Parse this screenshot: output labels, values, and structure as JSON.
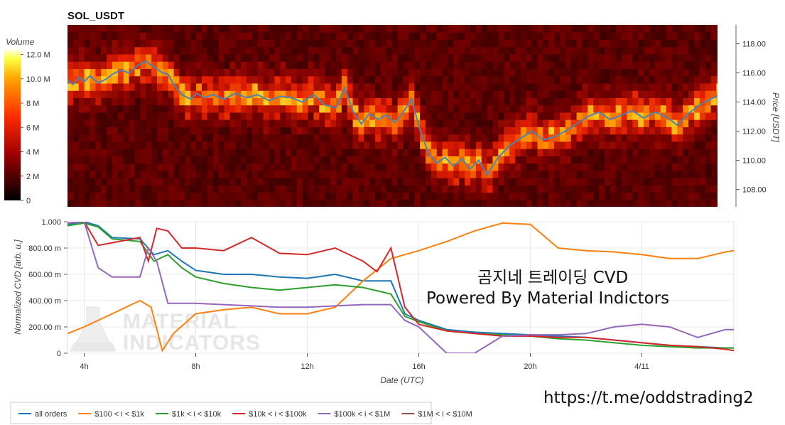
{
  "chart_data": [
    {
      "type": "heatmap",
      "title": "SOL_USDT",
      "colorbar_label": "Volume",
      "colorbar_ticks": [
        {
          "value": 0,
          "label": "0"
        },
        {
          "value": 2,
          "label": "2 M"
        },
        {
          "value": 4,
          "label": "4 M"
        },
        {
          "value": 6,
          "label": "6 M"
        },
        {
          "value": 8,
          "label": "8 M"
        },
        {
          "value": 10,
          "label": "10.0 M"
        },
        {
          "value": 12,
          "label": "12.0 M"
        }
      ],
      "colorbar_range": [
        0,
        12.5
      ],
      "ylabel": "Price [USDT]",
      "ylim": [
        106.8,
        119.3
      ],
      "y_ticks": [
        "108.00",
        "110.00",
        "112.00",
        "114.00",
        "116.00",
        "118.00"
      ],
      "xlim": [
        3.4,
        27.3
      ],
      "price_line": {
        "color": "#4a84b6",
        "x": [
          3.4,
          3.6,
          3.8,
          4.0,
          4.2,
          4.5,
          4.8,
          5.0,
          5.3,
          5.6,
          5.9,
          6.2,
          6.5,
          6.8,
          7.0,
          7.2,
          7.5,
          7.8,
          8.0,
          8.3,
          8.6,
          9.0,
          9.4,
          9.8,
          10.2,
          10.6,
          11.0,
          11.4,
          11.8,
          12.2,
          12.6,
          13.0,
          13.3,
          13.6,
          13.9,
          14.2,
          14.5,
          14.8,
          15.1,
          15.4,
          15.7,
          16.0,
          16.3,
          16.6,
          16.9,
          17.2,
          17.5,
          17.8,
          18.1,
          18.4,
          18.8,
          19.2,
          19.6,
          20.0,
          20.4,
          20.8,
          21.2,
          21.6,
          22.0,
          22.4,
          22.8,
          23.2,
          23.6,
          24.0,
          24.4,
          24.8,
          25.2,
          25.6,
          26.0,
          26.4,
          26.8,
          27.0,
          27.3
        ],
        "y": [
          115.5,
          115.2,
          115.7,
          115.4,
          115.8,
          115.3,
          115.6,
          115.9,
          116.2,
          116.0,
          116.5,
          116.8,
          116.4,
          116.0,
          115.9,
          115.2,
          114.5,
          114.2,
          114.6,
          114.3,
          114.5,
          114.2,
          114.6,
          114.3,
          114.5,
          114.1,
          114.4,
          114.3,
          114.0,
          114.5,
          113.8,
          113.6,
          115.0,
          113.4,
          112.5,
          113.2,
          112.8,
          113.1,
          112.6,
          113.3,
          114.2,
          112.1,
          110.5,
          109.8,
          110.2,
          109.6,
          110.1,
          109.4,
          110.0,
          109.0,
          110.2,
          111.0,
          111.5,
          112.0,
          111.4,
          111.6,
          112.0,
          112.5,
          113.0,
          113.3,
          112.8,
          113.1,
          113.4,
          112.9,
          113.3,
          113.0,
          112.4,
          113.2,
          113.8,
          114.2,
          114.6,
          114.4,
          115.5
        ]
      }
    },
    {
      "type": "line",
      "ylabel": "Normalized CVD [arb. u.]",
      "xlabel": "Date (UTC)",
      "ylim": [
        0,
        1
      ],
      "y_ticks": [
        "0",
        "200.00 m",
        "400.00 m",
        "600.00 m",
        "800.00 m",
        "1.000"
      ],
      "xlim": [
        3.4,
        27.3
      ],
      "x_ticks": [
        {
          "value": 4,
          "label": "4h"
        },
        {
          "value": 8,
          "label": "8h"
        },
        {
          "value": 12,
          "label": "12h"
        },
        {
          "value": 16,
          "label": "16h"
        },
        {
          "value": 20,
          "label": "20h"
        },
        {
          "value": 24,
          "label": "4/11"
        }
      ],
      "series": [
        {
          "name": "all orders",
          "color": "#1f77b4",
          "x": [
            3.4,
            4.0,
            4.5,
            5.0,
            6.0,
            6.5,
            7.0,
            7.5,
            8.0,
            9.0,
            10.0,
            11.0,
            12.0,
            13.0,
            14.0,
            15.0,
            15.5,
            16.0,
            17.0,
            18.0,
            19.0,
            20.0,
            21.0,
            22.0,
            23.0,
            24.0,
            25.0,
            26.0,
            27.0,
            27.3
          ],
          "y": [
            0.98,
            1.0,
            0.97,
            0.88,
            0.87,
            0.75,
            0.78,
            0.7,
            0.63,
            0.6,
            0.6,
            0.58,
            0.57,
            0.6,
            0.55,
            0.55,
            0.3,
            0.25,
            0.18,
            0.16,
            0.15,
            0.14,
            0.13,
            0.12,
            0.1,
            0.08,
            0.06,
            0.05,
            0.04,
            0.04
          ]
        },
        {
          "name": "$100 < i < $1k",
          "color": "#ff7f0e",
          "x": [
            3.4,
            4.0,
            5.0,
            6.0,
            6.4,
            6.8,
            7.2,
            8.0,
            9.0,
            10.0,
            11.0,
            12.0,
            13.0,
            14.0,
            15.0,
            16.0,
            17.0,
            18.0,
            19.0,
            20.0,
            21.0,
            22.0,
            23.0,
            24.0,
            25.0,
            26.0,
            27.0,
            27.3
          ],
          "y": [
            0.15,
            0.2,
            0.3,
            0.4,
            0.35,
            0.02,
            0.15,
            0.3,
            0.33,
            0.35,
            0.3,
            0.3,
            0.35,
            0.55,
            0.72,
            0.78,
            0.85,
            0.93,
            0.99,
            0.98,
            0.8,
            0.78,
            0.77,
            0.75,
            0.72,
            0.72,
            0.77,
            0.78
          ]
        },
        {
          "name": "$1k < i < $10k",
          "color": "#2ca02c",
          "x": [
            3.4,
            4.0,
            4.5,
            5.0,
            6.0,
            6.5,
            7.0,
            7.5,
            8.0,
            9.0,
            10.0,
            11.0,
            12.0,
            13.0,
            14.0,
            15.0,
            15.5,
            16.0,
            17.0,
            18.0,
            19.0,
            20.0,
            21.0,
            22.0,
            23.0,
            24.0,
            25.0,
            26.0,
            27.0,
            27.3
          ],
          "y": [
            0.97,
            0.99,
            0.96,
            0.87,
            0.85,
            0.7,
            0.75,
            0.65,
            0.58,
            0.53,
            0.5,
            0.48,
            0.5,
            0.52,
            0.5,
            0.45,
            0.28,
            0.24,
            0.17,
            0.15,
            0.14,
            0.13,
            0.11,
            0.1,
            0.08,
            0.06,
            0.05,
            0.04,
            0.04,
            0.04
          ]
        },
        {
          "name": "$10k < i < $100k",
          "color": "#d62728",
          "x": [
            3.4,
            4.0,
            4.5,
            5.0,
            6.0,
            6.3,
            6.6,
            7.0,
            7.5,
            8.0,
            9.0,
            10.0,
            11.0,
            12.0,
            13.0,
            14.0,
            14.5,
            15.0,
            15.5,
            16.0,
            17.0,
            18.0,
            19.0,
            20.0,
            21.0,
            22.0,
            23.0,
            24.0,
            25.0,
            26.0,
            27.0,
            27.3
          ],
          "y": [
            0.99,
            1.0,
            0.82,
            0.84,
            0.88,
            0.7,
            0.95,
            0.93,
            0.8,
            0.8,
            0.78,
            0.88,
            0.76,
            0.75,
            0.8,
            0.7,
            0.62,
            0.8,
            0.35,
            0.22,
            0.17,
            0.15,
            0.13,
            0.13,
            0.12,
            0.12,
            0.1,
            0.08,
            0.06,
            0.05,
            0.03,
            0.02
          ]
        },
        {
          "name": "$100k < i < $1M",
          "color": "#9467bd",
          "x": [
            3.4,
            4.0,
            4.5,
            5.0,
            6.0,
            6.3,
            6.6,
            7.0,
            8.0,
            9.0,
            10.0,
            11.0,
            12.0,
            13.0,
            14.0,
            15.0,
            15.5,
            16.0,
            17.0,
            18.0,
            19.0,
            20.0,
            21.0,
            22.0,
            23.0,
            24.0,
            25.0,
            26.0,
            27.0,
            27.3
          ],
          "y": [
            0.99,
            1.0,
            0.65,
            0.58,
            0.58,
            0.8,
            0.7,
            0.38,
            0.38,
            0.37,
            0.36,
            0.35,
            0.35,
            0.36,
            0.37,
            0.37,
            0.25,
            0.2,
            0.0,
            0.0,
            0.13,
            0.14,
            0.14,
            0.15,
            0.2,
            0.22,
            0.2,
            0.12,
            0.18,
            0.18
          ]
        },
        {
          "name": "$1M < i < $10M",
          "color": "#8c564b",
          "x": [],
          "y": []
        }
      ]
    }
  ],
  "overlays": {
    "watermark_line1": "MATERIAL",
    "watermark_line2": "INDICATORS",
    "caption_line1": "곰지네 트레이딩 CVD",
    "caption_line2": "Powered By Material Indictors",
    "link": "https://t.me/oddstrading2"
  }
}
